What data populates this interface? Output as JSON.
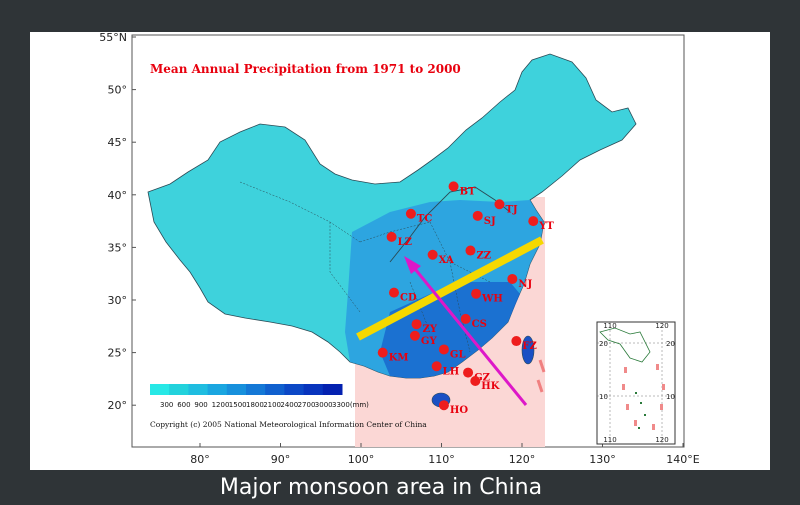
{
  "map_title": "Mean Annual Precipitation from 1971 to 2000",
  "copyright": "Copyright (c) 2005   National Meteorological Information Center of China",
  "caption": "Major monsoon area in China",
  "x_ticks": [
    "80°",
    "90°",
    "100°",
    "110°",
    "120°",
    "130°",
    "140°E"
  ],
  "y_ticks": [
    "55°N",
    "50°",
    "45°",
    "40°",
    "35°",
    "30°",
    "25°",
    "20°"
  ],
  "legend": {
    "values": [
      "300",
      "600",
      "900",
      "1200",
      "1500",
      "1800",
      "2100",
      "2400",
      "2700",
      "3000",
      "3300(mm)"
    ],
    "colors": [
      "#27e8e6",
      "#22d2dc",
      "#1fbde0",
      "#1aa6e0",
      "#1790dc",
      "#1478d6",
      "#1060ce",
      "#0c48c6",
      "#0834bd",
      "#0421b0"
    ]
  },
  "cities": [
    {
      "code": "BT",
      "lon": 111.5,
      "lat": 40.8
    },
    {
      "code": "TC",
      "lon": 106.2,
      "lat": 38.2
    },
    {
      "code": "TJ",
      "lon": 117.2,
      "lat": 39.1
    },
    {
      "code": "SJ",
      "lon": 114.5,
      "lat": 38.0
    },
    {
      "code": "YT",
      "lon": 121.4,
      "lat": 37.5
    },
    {
      "code": "LZ",
      "lon": 103.8,
      "lat": 36.0
    },
    {
      "code": "ZZ",
      "lon": 113.6,
      "lat": 34.7
    },
    {
      "code": "XA",
      "lon": 108.9,
      "lat": 34.3
    },
    {
      "code": "NJ",
      "lon": 118.8,
      "lat": 32.0
    },
    {
      "code": "CD",
      "lon": 104.1,
      "lat": 30.7
    },
    {
      "code": "WH",
      "lon": 114.3,
      "lat": 30.6
    },
    {
      "code": "ZY",
      "lon": 106.9,
      "lat": 27.7
    },
    {
      "code": "CS",
      "lon": 113.0,
      "lat": 28.2
    },
    {
      "code": "GY",
      "lon": 106.7,
      "lat": 26.6
    },
    {
      "code": "FZ",
      "lon": 119.3,
      "lat": 26.1
    },
    {
      "code": "KM",
      "lon": 102.7,
      "lat": 25.0
    },
    {
      "code": "GL",
      "lon": 110.3,
      "lat": 25.3
    },
    {
      "code": "LH",
      "lon": 109.4,
      "lat": 23.7
    },
    {
      "code": "GZ",
      "lon": 113.3,
      "lat": 23.1
    },
    {
      "code": "HK",
      "lon": 114.2,
      "lat": 22.3
    },
    {
      "code": "HO",
      "lon": 110.3,
      "lat": 20.0
    }
  ],
  "inset_labels": {
    "top_left": "110",
    "top_right": "120",
    "bottom_left": "110",
    "bottom_right": "120",
    "left_upper": "20",
    "left_lower": "10",
    "right_upper": "20",
    "right_lower": "10"
  },
  "colors": {
    "monsoon_zone": "#fbd7d5",
    "boundary_band": "#f5d800",
    "arrow": "#dd18c8",
    "city_dot": "#ee1d1d",
    "ocean": "#ffffff"
  }
}
